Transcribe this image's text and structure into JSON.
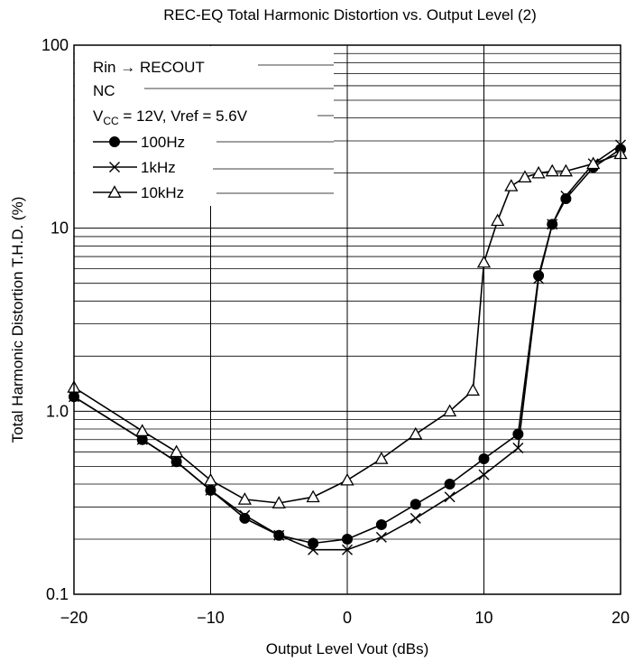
{
  "chart_data": {
    "type": "line",
    "title": "REC-EQ Total Harmonic Distortion vs. Output Level (2)",
    "xlabel": "Output Level  Vout  (dBs)",
    "ylabel": "Total Harmonic Distortion  T.H.D.  (%)",
    "xlim": [
      -20,
      20
    ],
    "ylim": [
      0.1,
      100
    ],
    "yscale": "log",
    "grid": true,
    "xticks": [
      -20,
      -10,
      0,
      10,
      20
    ],
    "xtick_labels": [
      "−20",
      "−10",
      "0",
      "10",
      "20"
    ],
    "yticks": [
      0.1,
      1,
      10,
      100
    ],
    "ytick_labels": [
      "0.1",
      "1.0",
      "10",
      "100"
    ],
    "legend_position": "top-left",
    "annotations": [
      {
        "text": "Rin → RECOUT"
      },
      {
        "text": "NC"
      },
      {
        "main": "V",
        "sub": "CC",
        "rest": " = 12V, Vref = 5.6V"
      }
    ],
    "series": [
      {
        "name": "100Hz",
        "marker": "filled-circle",
        "x": [
          -20,
          -15,
          -12.5,
          -10,
          -7.5,
          -5,
          -2.5,
          0,
          2.5,
          5,
          7.5,
          10,
          12.5,
          14,
          15,
          16,
          18,
          20
        ],
        "values": [
          1.2,
          0.7,
          0.53,
          0.37,
          0.26,
          0.21,
          0.19,
          0.2,
          0.24,
          0.31,
          0.4,
          0.55,
          0.75,
          5.5,
          10.5,
          14.5,
          21.5,
          27
        ]
      },
      {
        "name": "1kHz",
        "marker": "cross",
        "x": [
          -20,
          -15,
          -12.5,
          -10,
          -7.5,
          -5,
          -2.5,
          0,
          2.5,
          5,
          7.5,
          10,
          12.5,
          14,
          15,
          16,
          18,
          20
        ],
        "values": [
          1.2,
          0.7,
          0.53,
          0.37,
          0.27,
          0.21,
          0.175,
          0.175,
          0.205,
          0.26,
          0.34,
          0.45,
          0.63,
          5.3,
          10.5,
          15,
          22.5,
          28.5
        ]
      },
      {
        "name": "10kHz",
        "marker": "open-triangle",
        "x": [
          -20,
          -15,
          -12.5,
          -10,
          -7.5,
          -5,
          -2.5,
          0,
          2.5,
          5,
          7.5,
          9.2,
          10,
          11,
          12,
          13,
          14,
          15,
          16,
          18,
          20
        ],
        "values": [
          1.35,
          0.78,
          0.6,
          0.42,
          0.33,
          0.315,
          0.34,
          0.42,
          0.55,
          0.75,
          1.0,
          1.3,
          6.5,
          11,
          17,
          19,
          20,
          20.5,
          20.5,
          22.5,
          25.5
        ]
      }
    ]
  }
}
